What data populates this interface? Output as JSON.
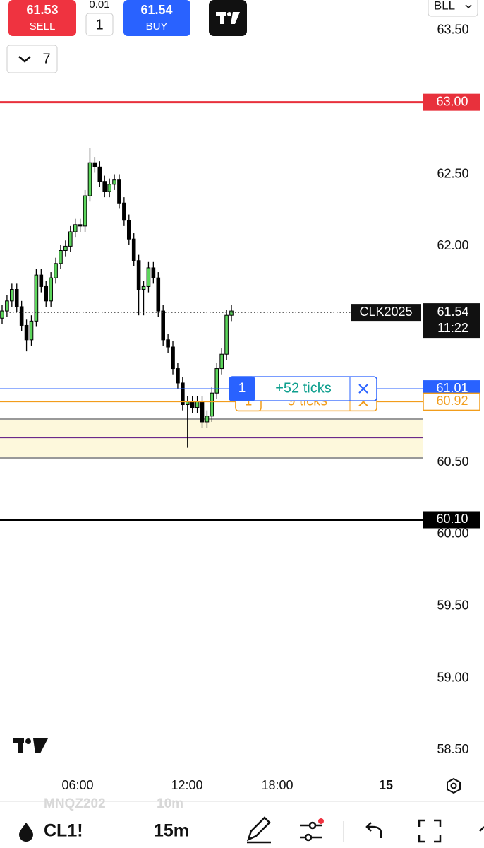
{
  "toolbar": {
    "sell_price": "61.53",
    "sell_label": "SELL",
    "qty_step": "0.01",
    "qty": "1",
    "buy_price": "61.54",
    "buy_label": "BUY",
    "account": "BLL",
    "layout_count": "7"
  },
  "chart_data": {
    "type": "candlestick",
    "candles": [
      [
        61.5,
        61.59,
        61.46,
        61.55
      ],
      [
        61.55,
        61.66,
        61.51,
        61.62
      ],
      [
        61.62,
        61.74,
        61.58,
        61.7
      ],
      [
        61.7,
        61.74,
        61.54,
        61.58
      ],
      [
        61.58,
        61.62,
        61.41,
        61.45
      ],
      [
        61.45,
        61.49,
        61.27,
        61.35
      ],
      [
        61.35,
        61.52,
        61.31,
        61.48
      ],
      [
        61.48,
        61.84,
        61.44,
        61.8
      ],
      [
        61.8,
        61.84,
        61.68,
        61.72
      ],
      [
        61.72,
        61.76,
        61.58,
        61.62
      ],
      [
        61.62,
        61.82,
        61.58,
        61.78
      ],
      [
        61.78,
        61.92,
        61.74,
        61.88
      ],
      [
        61.88,
        62.01,
        61.84,
        61.97
      ],
      [
        61.97,
        62.04,
        61.93,
        62.0
      ],
      [
        62.0,
        62.14,
        61.96,
        62.1
      ],
      [
        62.1,
        62.19,
        62.06,
        62.15
      ],
      [
        62.15,
        62.19,
        62.1,
        62.14
      ],
      [
        62.14,
        62.39,
        62.1,
        62.35
      ],
      [
        62.35,
        62.68,
        62.31,
        62.58
      ],
      [
        62.58,
        62.62,
        62.51,
        62.55
      ],
      [
        62.55,
        62.59,
        62.41,
        62.45
      ],
      [
        62.45,
        62.49,
        62.34,
        62.38
      ],
      [
        62.38,
        62.47,
        62.34,
        62.43
      ],
      [
        62.43,
        62.5,
        62.39,
        62.46
      ],
      [
        62.46,
        62.5,
        62.26,
        62.3
      ],
      [
        62.3,
        62.34,
        62.14,
        62.18
      ],
      [
        62.18,
        62.22,
        62.01,
        62.05
      ],
      [
        62.05,
        62.09,
        61.86,
        61.9
      ],
      [
        61.9,
        61.94,
        61.52,
        61.7
      ],
      [
        61.7,
        61.76,
        61.52,
        61.72
      ],
      [
        61.72,
        61.89,
        61.68,
        61.85
      ],
      [
        61.85,
        61.89,
        61.74,
        61.78
      ],
      [
        61.78,
        61.82,
        61.51,
        61.55
      ],
      [
        61.55,
        61.59,
        61.31,
        61.35
      ],
      [
        61.35,
        61.39,
        61.26,
        61.3
      ],
      [
        61.3,
        61.34,
        61.11,
        61.15
      ],
      [
        61.15,
        61.19,
        61.01,
        61.05
      ],
      [
        61.05,
        61.09,
        60.86,
        60.9
      ],
      [
        60.9,
        60.96,
        60.6,
        60.92
      ],
      [
        60.92,
        60.96,
        60.84,
        60.88
      ],
      [
        60.88,
        60.96,
        60.84,
        60.92
      ],
      [
        60.92,
        60.96,
        60.74,
        60.78
      ],
      [
        60.78,
        60.86,
        60.74,
        60.82
      ],
      [
        60.82,
        61.02,
        60.78,
        60.98
      ],
      [
        60.98,
        61.19,
        60.94,
        61.15
      ],
      [
        61.15,
        61.29,
        61.11,
        61.25
      ],
      [
        61.25,
        61.56,
        61.21,
        61.52
      ],
      [
        61.52,
        61.59,
        61.48,
        61.55
      ]
    ],
    "up_color": "#5cd65c",
    "down_color": "#000000",
    "ylim": [
      58.36,
      63.71
    ],
    "yticks": [
      {
        "value": 63.5,
        "label": "63.50"
      },
      {
        "value": 62.5,
        "label": "62.50"
      },
      {
        "value": 62,
        "label": "62.00"
      },
      {
        "value": 60.5,
        "label": "60.50"
      },
      {
        "value": 60,
        "label": "60.00"
      },
      {
        "value": 59.5,
        "label": "59.50"
      },
      {
        "value": 59,
        "label": "59.00"
      },
      {
        "value": 58.5,
        "label": "58.50"
      }
    ],
    "xticks": [
      "06:00",
      "12:00",
      "18:00",
      "15"
    ],
    "price_lines": [
      {
        "value": 63,
        "label": "63.00",
        "color": "#e8313c"
      },
      {
        "value": 61.01,
        "label": "61.01",
        "color": "#2962ff"
      },
      {
        "value": 60.92,
        "label": "60.92",
        "color": "#f29d1b"
      },
      {
        "value": 60.1,
        "label": "60.10",
        "color": "#000000"
      }
    ],
    "last_price": {
      "value": 61.54,
      "label": "61.54",
      "symbol": "CLK2025",
      "countdown": "11:22"
    },
    "zone": {
      "top": 60.8,
      "bottom": 60.53,
      "mid": 60.67
    },
    "orders": [
      {
        "qty": "1",
        "pnl": "+52 ticks",
        "color": "#2962ff",
        "text_color": "#0e9f8e"
      },
      {
        "qty": "1",
        "pnl": "−9 ticks",
        "color": "#f29d1b",
        "text_color": "#f29d1b"
      }
    ]
  },
  "bottom_bar": {
    "symbol": "CL1!",
    "interval": "15m",
    "ghost_symbol": "MNQZ202",
    "ghost_interval": "10m"
  }
}
